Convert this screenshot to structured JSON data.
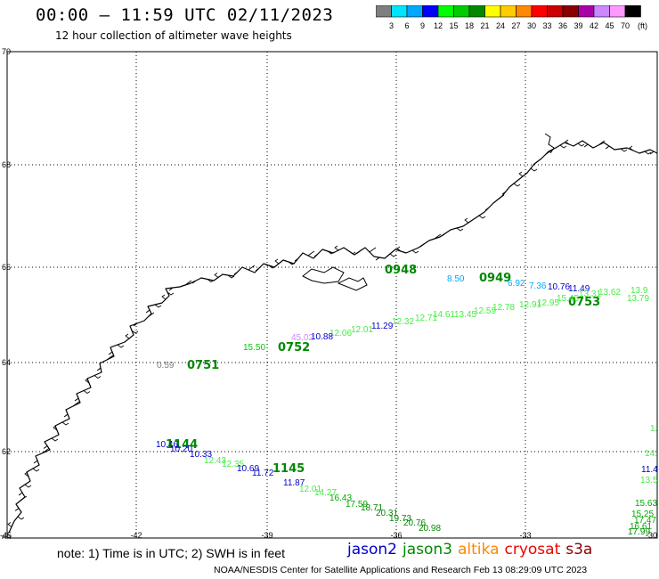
{
  "header": {
    "title": "00:00 – 11:59 UTC 02/11/2023",
    "subtitle": "12 hour collection of altimeter wave heights"
  },
  "colorbar": {
    "unit": "(ft)",
    "ticks": [
      "3",
      "6",
      "9",
      "12",
      "15",
      "18",
      "21",
      "24",
      "27",
      "30",
      "33",
      "36",
      "39",
      "42",
      "45",
      "70"
    ],
    "colors": [
      "#7f7f7f",
      "#00e5ff",
      "#00a8ff",
      "#0000ff",
      "#00ff00",
      "#00cc00",
      "#008800",
      "#ffff00",
      "#ffcc00",
      "#ff8800",
      "#ff0000",
      "#cc0000",
      "#880000",
      "#aa00aa",
      "#cc88ff",
      "#ff99ff",
      "#000000"
    ]
  },
  "axes": {
    "x_ticks": [
      "-45",
      "-42",
      "-39",
      "-36",
      "-33",
      "-30"
    ],
    "y_ticks": [
      "70",
      "68",
      "66",
      "64",
      "62",
      "60"
    ]
  },
  "passes": [
    {
      "label": "0948",
      "color": "#008800"
    },
    {
      "label": "0949",
      "color": "#008800"
    },
    {
      "label": "0753",
      "color": "#008800"
    },
    {
      "label": "0752",
      "color": "#008800"
    },
    {
      "label": "0751",
      "color": "#008800"
    },
    {
      "label": "1144",
      "color": "#008800"
    },
    {
      "label": "1145",
      "color": "#008800"
    }
  ],
  "observations": [
    {
      "v": "8.50",
      "color": "#00a8ff"
    },
    {
      "v": "6.92",
      "color": "#00a8ff"
    },
    {
      "v": "7.36",
      "color": "#00a8ff"
    },
    {
      "v": "10.76",
      "color": "#0000cc"
    },
    {
      "v": "11.49",
      "color": "#0000cc"
    },
    {
      "v": "15.45",
      "color": "#44ee44"
    },
    {
      "v": "13.31",
      "color": "#44ee44"
    },
    {
      "v": "13.62",
      "color": "#44ee44"
    },
    {
      "v": "13.9",
      "color": "#44ee44"
    },
    {
      "v": "13.79",
      "color": "#44ee44"
    },
    {
      "v": "12.95",
      "color": "#44ee44"
    },
    {
      "v": "12.91",
      "color": "#44ee44"
    },
    {
      "v": "12.78",
      "color": "#44ee44"
    },
    {
      "v": "12.59",
      "color": "#44ee44"
    },
    {
      "v": "13.45",
      "color": "#44ee44"
    },
    {
      "v": "14.61",
      "color": "#44ee44"
    },
    {
      "v": "12.71",
      "color": "#44ee44"
    },
    {
      "v": "12.32",
      "color": "#44ee44"
    },
    {
      "v": "11.29",
      "color": "#0000cc"
    },
    {
      "v": "12.01",
      "color": "#44ee44"
    },
    {
      "v": "12.06",
      "color": "#44ee44"
    },
    {
      "v": "10.88",
      "color": "#0000cc"
    },
    {
      "v": "45.02",
      "color": "#cc88ff"
    },
    {
      "v": "15.50",
      "color": "#00cc00"
    },
    {
      "v": "0.59",
      "color": "#7f7f7f"
    },
    {
      "v": "10.46",
      "color": "#0000cc"
    },
    {
      "v": "10.20",
      "color": "#0000cc"
    },
    {
      "v": "10.33",
      "color": "#0000cc"
    },
    {
      "v": "12.43",
      "color": "#44ee44"
    },
    {
      "v": "12.35",
      "color": "#44ee44"
    },
    {
      "v": "10.69",
      "color": "#0000cc"
    },
    {
      "v": "11.72",
      "color": "#0000cc"
    },
    {
      "v": "11.87",
      "color": "#0000cc"
    },
    {
      "v": "12.01",
      "color": "#44ee44"
    },
    {
      "v": "14.27",
      "color": "#44ee44"
    },
    {
      "v": "16.43",
      "color": "#00aa00"
    },
    {
      "v": "17.59",
      "color": "#00aa00"
    },
    {
      "v": "18.71",
      "color": "#008800"
    },
    {
      "v": "20.31",
      "color": "#008800"
    },
    {
      "v": "19.73",
      "color": "#008800"
    },
    {
      "v": "20.76",
      "color": "#008800"
    },
    {
      "v": "20.98",
      "color": "#008800"
    },
    {
      "v": "11.4",
      "color": "#0000cc"
    },
    {
      "v": "13.5",
      "color": "#44ee44"
    },
    {
      "v": "15.63",
      "color": "#00aa00"
    },
    {
      "v": "15.25",
      "color": "#00aa00"
    },
    {
      "v": "17.47",
      "color": "#00aa00"
    },
    {
      "v": "16.61",
      "color": "#00aa00"
    },
    {
      "v": "17.99",
      "color": "#008800"
    },
    {
      "v": "1.",
      "color": "#44ee44"
    },
    {
      "v": "14.",
      "color": "#44ee44"
    }
  ],
  "note": "note: 1) Time is in UTC; 2) SWH is in feet",
  "legend": [
    {
      "name": "jason2",
      "color": "#0000cc"
    },
    {
      "name": "jason3",
      "color": "#008800"
    },
    {
      "name": "altika",
      "color": "#ff8800"
    },
    {
      "name": "cryosat",
      "color": "#ee0000"
    },
    {
      "name": "s3a",
      "color": "#880000"
    }
  ],
  "credit": "NOAA/NESDIS Center for Satellite Applications and Research    Feb 13 08:29:09 UTC 2023"
}
